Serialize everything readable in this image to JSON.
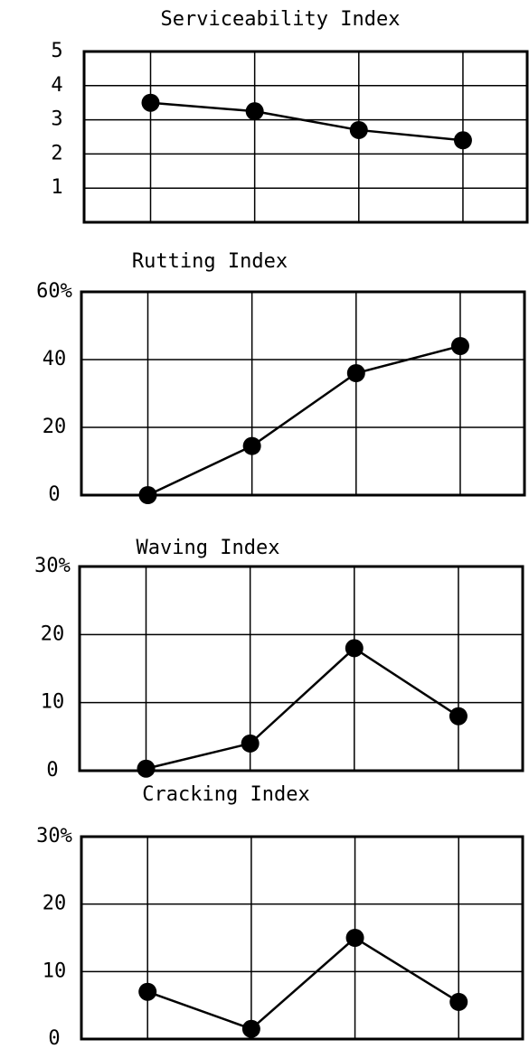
{
  "chart_data": [
    {
      "type": "line",
      "title": "Serviceability Index",
      "categories": [
        null,
        null,
        null,
        null
      ],
      "values": [
        3.5,
        3.25,
        2.7,
        2.4
      ],
      "color": "#000000",
      "ylim": [
        0,
        5
      ],
      "yticks": [
        1,
        2,
        3,
        4,
        5
      ],
      "grid": true
    },
    {
      "type": "line",
      "title": "Rutting Index",
      "categories": [
        null,
        null,
        null,
        null
      ],
      "values": [
        0,
        14.5,
        36,
        44
      ],
      "color": "#000000",
      "ylim": [
        0,
        60
      ],
      "yticks": [
        0,
        20,
        40,
        {
          "value": 60,
          "label": "60%"
        }
      ],
      "grid": true
    },
    {
      "type": "line",
      "title": "Waving Index",
      "categories": [
        null,
        null,
        null,
        null
      ],
      "values": [
        0.3,
        4,
        18,
        8
      ],
      "color": "#000000",
      "ylim": [
        0,
        30
      ],
      "yticks": [
        0,
        10,
        20,
        {
          "value": 30,
          "label": "30%"
        }
      ],
      "grid": true
    },
    {
      "type": "line",
      "title": "Cracking Index",
      "categories": [
        null,
        null,
        null,
        null
      ],
      "values": [
        7,
        1.5,
        15,
        5.5
      ],
      "color": "#000000",
      "ylim": [
        0,
        30
      ],
      "yticks": [
        0,
        10,
        20,
        {
          "value": 30,
          "label": "30%"
        }
      ],
      "grid": true
    }
  ]
}
